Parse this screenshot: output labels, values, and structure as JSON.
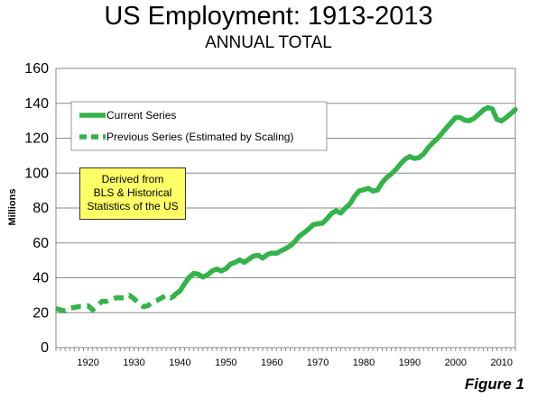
{
  "chart_data": {
    "type": "line",
    "title": "US Employment: 1913-2013",
    "subtitle": "ANNUAL TOTAL",
    "xlabel": "",
    "ylabel": "Millions",
    "xlim": [
      1913,
      2013
    ],
    "ylim": [
      0,
      160
    ],
    "x_ticks": [
      "1920",
      "1930",
      "1940",
      "1950",
      "1960",
      "1970",
      "1980",
      "1990",
      "2000",
      "2010"
    ],
    "y_ticks": [
      "0",
      "20",
      "40",
      "60",
      "80",
      "100",
      "120",
      "140",
      "160"
    ],
    "grid": "horizontal",
    "legend_position": "top-left",
    "series": [
      {
        "name": "Current Series",
        "style": "solid",
        "color": "#33b34a",
        "points": [
          [
            1939,
            30.6
          ],
          [
            1940,
            32.4
          ],
          [
            1941,
            36.6
          ],
          [
            1942,
            40.3
          ],
          [
            1943,
            42.6
          ],
          [
            1944,
            42.0
          ],
          [
            1945,
            40.4
          ],
          [
            1946,
            41.7
          ],
          [
            1947,
            43.9
          ],
          [
            1948,
            45.0
          ],
          [
            1949,
            43.9
          ],
          [
            1950,
            45.2
          ],
          [
            1951,
            47.9
          ],
          [
            1952,
            48.8
          ],
          [
            1953,
            50.2
          ],
          [
            1954,
            48.9
          ],
          [
            1955,
            50.7
          ],
          [
            1956,
            52.5
          ],
          [
            1957,
            52.9
          ],
          [
            1958,
            51.3
          ],
          [
            1959,
            53.3
          ],
          [
            1960,
            54.2
          ],
          [
            1961,
            54.0
          ],
          [
            1962,
            55.5
          ],
          [
            1963,
            56.7
          ],
          [
            1964,
            58.3
          ],
          [
            1965,
            60.8
          ],
          [
            1966,
            63.9
          ],
          [
            1967,
            65.8
          ],
          [
            1968,
            67.9
          ],
          [
            1969,
            70.4
          ],
          [
            1970,
            71.0
          ],
          [
            1971,
            71.3
          ],
          [
            1972,
            73.8
          ],
          [
            1973,
            76.9
          ],
          [
            1974,
            78.4
          ],
          [
            1975,
            77.1
          ],
          [
            1976,
            80.0
          ],
          [
            1977,
            82.4
          ],
          [
            1978,
            86.7
          ],
          [
            1979,
            89.8
          ],
          [
            1980,
            90.5
          ],
          [
            1981,
            91.3
          ],
          [
            1982,
            89.7
          ],
          [
            1983,
            90.3
          ],
          [
            1984,
            94.5
          ],
          [
            1985,
            97.5
          ],
          [
            1986,
            99.5
          ],
          [
            1987,
            102.1
          ],
          [
            1988,
            105.3
          ],
          [
            1989,
            107.9
          ],
          [
            1990,
            109.5
          ],
          [
            1991,
            108.4
          ],
          [
            1992,
            108.8
          ],
          [
            1993,
            110.9
          ],
          [
            1994,
            114.4
          ],
          [
            1995,
            117.3
          ],
          [
            1996,
            119.7
          ],
          [
            1997,
            122.8
          ],
          [
            1998,
            125.9
          ],
          [
            1999,
            128.9
          ],
          [
            2000,
            131.8
          ],
          [
            2001,
            131.8
          ],
          [
            2002,
            130.3
          ],
          [
            2003,
            130.0
          ],
          [
            2004,
            131.4
          ],
          [
            2005,
            133.7
          ],
          [
            2006,
            136.1
          ],
          [
            2007,
            137.6
          ],
          [
            2008,
            136.8
          ],
          [
            2009,
            130.8
          ],
          [
            2010,
            129.9
          ],
          [
            2011,
            131.8
          ],
          [
            2012,
            134.0
          ],
          [
            2013,
            136.4
          ]
        ]
      },
      {
        "name": "Previous Series (Estimated by Scaling)",
        "style": "dashed",
        "color": "#33b34a",
        "points": [
          [
            1913,
            22.5
          ],
          [
            1914,
            21.5
          ],
          [
            1915,
            21.0
          ],
          [
            1916,
            22.5
          ],
          [
            1917,
            23.0
          ],
          [
            1918,
            23.5
          ],
          [
            1919,
            23.5
          ],
          [
            1920,
            24.0
          ],
          [
            1921,
            21.5
          ],
          [
            1922,
            24.0
          ],
          [
            1923,
            26.5
          ],
          [
            1924,
            26.5
          ],
          [
            1925,
            27.5
          ],
          [
            1926,
            28.5
          ],
          [
            1927,
            28.5
          ],
          [
            1928,
            28.5
          ],
          [
            1929,
            30.0
          ],
          [
            1930,
            28.0
          ],
          [
            1931,
            25.5
          ],
          [
            1932,
            23.5
          ],
          [
            1933,
            24.0
          ],
          [
            1934,
            26.0
          ],
          [
            1935,
            27.0
          ],
          [
            1936,
            28.5
          ],
          [
            1937,
            30.0
          ],
          [
            1938,
            28.5
          ],
          [
            1939,
            30.0
          ]
        ]
      }
    ],
    "annotation": [
      "Derived from",
      "BLS & Historical",
      "Statistics of the US"
    ],
    "figure_label": "Figure 1"
  }
}
